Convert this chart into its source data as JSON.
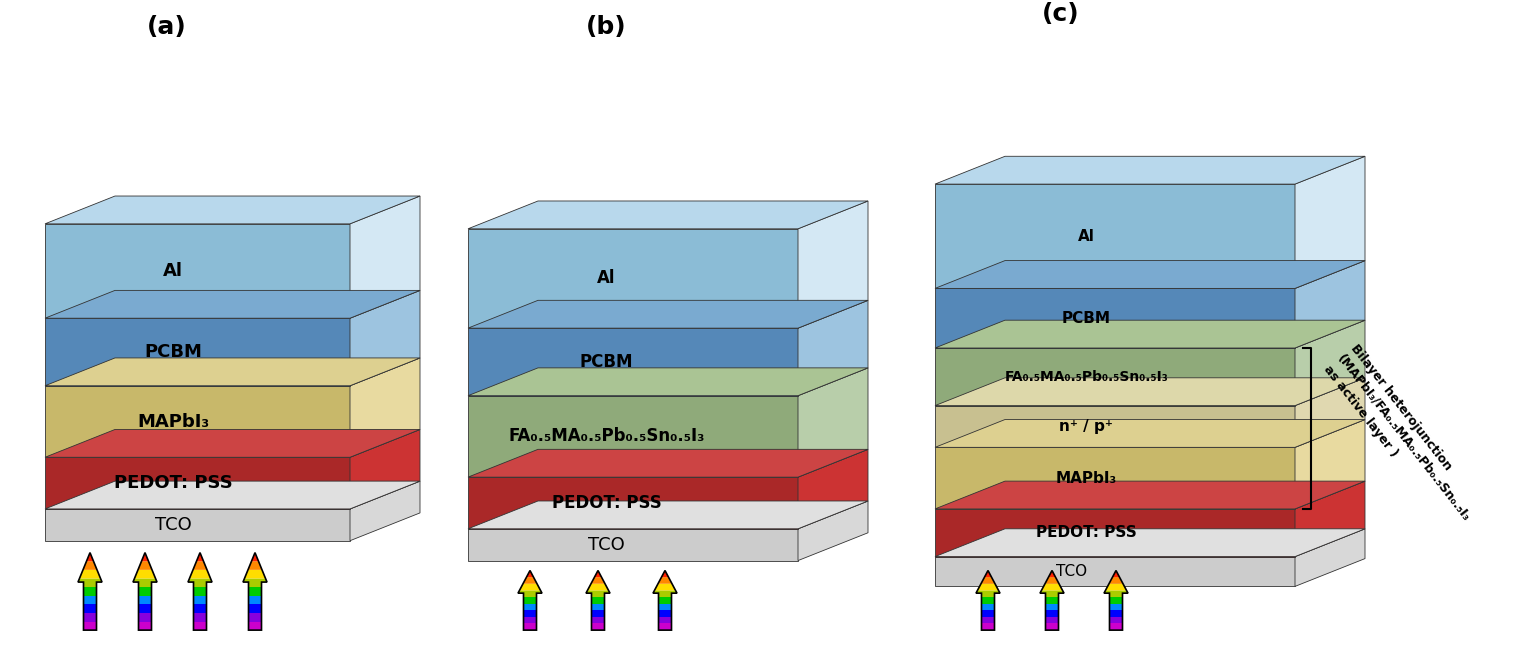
{
  "bg_color": "#ffffff",
  "panels": [
    "(a)",
    "(b)",
    "(c)"
  ],
  "panel_a_layers": [
    {
      "label": "Al",
      "face": "#8bbcd6",
      "top": "#b8d8ec",
      "side": "#d4e8f4"
    },
    {
      "label": "PCBM",
      "face": "#5588b8",
      "top": "#7aaad0",
      "side": "#9dc4e0"
    },
    {
      "label": "MAPbI₃",
      "face": "#c8b86a",
      "top": "#ddd090",
      "side": "#e8daa0"
    },
    {
      "label": "PEDOT: PSS",
      "face": "#aa2828",
      "top": "#cc4444",
      "side": "#cc3333"
    },
    {
      "label": "TCO",
      "face": "#cccccc",
      "top": "#e0e0e0",
      "side": "#d8d8d8"
    }
  ],
  "panel_b_layers": [
    {
      "label": "Al",
      "face": "#8bbcd6",
      "top": "#b8d8ec",
      "side": "#d4e8f4"
    },
    {
      "label": "PCBM",
      "face": "#5588b8",
      "top": "#7aaad0",
      "side": "#9dc4e0"
    },
    {
      "label": "FA₀.₅MA₀.₅Pb₀.₅Sn₀.₅I₃",
      "face": "#8faa7a",
      "top": "#aac494",
      "side": "#b8ceaa"
    },
    {
      "label": "PEDOT: PSS",
      "face": "#aa2828",
      "top": "#cc4444",
      "side": "#cc3333"
    },
    {
      "label": "TCO",
      "face": "#cccccc",
      "top": "#e0e0e0",
      "side": "#d8d8d8"
    }
  ],
  "panel_c_layers": [
    {
      "label": "Al",
      "face": "#8bbcd6",
      "top": "#b8d8ec",
      "side": "#d4e8f4"
    },
    {
      "label": "PCBM",
      "face": "#5588b8",
      "top": "#7aaad0",
      "side": "#9dc4e0"
    },
    {
      "label": "FA₀.₅MA₀.₅Pb₀.₅Sn₀.₅I₃",
      "face": "#8faa7a",
      "top": "#aac494",
      "side": "#b8ceaa"
    },
    {
      "label": "n⁺ / p⁺",
      "face": "#c8c090",
      "top": "#ddd8aa",
      "side": "#e0d8b0"
    },
    {
      "label": "MAPbI₃",
      "face": "#c8b86a",
      "top": "#ddd090",
      "side": "#e8daa0"
    },
    {
      "label": "PEDOT: PSS",
      "face": "#aa2828",
      "top": "#cc4444",
      "side": "#cc3333"
    },
    {
      "label": "TCO",
      "face": "#cccccc",
      "top": "#e0e0e0",
      "side": "#d8d8d8"
    }
  ],
  "annotation": "Bilayer heterojunction\n(MAPbI₃/FA₀.₅MA₀.₅Pb₀.₅Sn₀.₅I₃\nas active layer )"
}
